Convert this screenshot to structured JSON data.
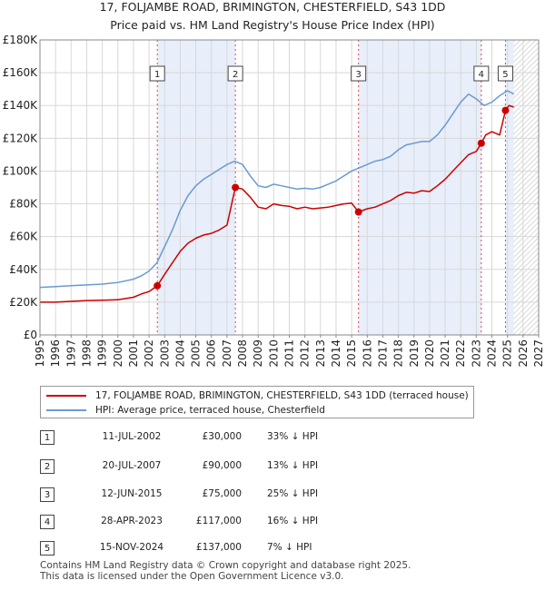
{
  "chart_data": {
    "type": "line",
    "title": "17, FOLJAMBE ROAD, BRIMINGTON, CHESTERFIELD, S43 1DD",
    "subtitle": "Price paid vs. HM Land Registry's House Price Index (HPI)",
    "x_ticks": [
      "1995",
      "1996",
      "1997",
      "1998",
      "1999",
      "2000",
      "2001",
      "2002",
      "2003",
      "2004",
      "2005",
      "2006",
      "2007",
      "2008",
      "2009",
      "2010",
      "2011",
      "2012",
      "2013",
      "2014",
      "2015",
      "2016",
      "2017",
      "2018",
      "2019",
      "2020",
      "2021",
      "2022",
      "2023",
      "2024",
      "2025",
      "2026",
      "2027"
    ],
    "y_ticks": [
      "£0",
      "£20K",
      "£40K",
      "£60K",
      "£80K",
      "£100K",
      "£120K",
      "£140K",
      "£160K",
      "£180K"
    ],
    "xlim": [
      1995,
      2027
    ],
    "ylim": [
      0,
      180000
    ],
    "forecast_from": 2025.4,
    "colors": {
      "property": "#cc0000",
      "hpi": "#6a9ad0",
      "shade": "#e8eefa",
      "grid": "#d8d8d8"
    },
    "series": [
      {
        "name": "17, FOLJAMBE ROAD, BRIMINGTON, CHESTERFIELD, S43 1DD (terraced house)",
        "color": "#cc0000",
        "x": [
          1995.0,
          1996.0,
          1997.0,
          1998.0,
          1999.0,
          2000.0,
          2001.0,
          2001.5,
          2002.0,
          2002.53,
          2003.0,
          2003.5,
          2004.0,
          2004.5,
          2005.0,
          2005.5,
          2006.0,
          2006.5,
          2007.0,
          2007.54,
          2008.0,
          2008.5,
          2009.0,
          2009.5,
          2010.0,
          2010.5,
          2011.0,
          2011.5,
          2012.0,
          2012.5,
          2013.0,
          2013.5,
          2014.0,
          2014.5,
          2015.0,
          2015.44,
          2016.0,
          2016.5,
          2017.0,
          2017.5,
          2018.0,
          2018.5,
          2019.0,
          2019.5,
          2020.0,
          2020.5,
          2021.0,
          2021.5,
          2022.0,
          2022.5,
          2023.0,
          2023.32,
          2023.6,
          2024.0,
          2024.5,
          2024.87,
          2025.1,
          2025.4
        ],
        "values": [
          20000,
          20000,
          20500,
          21000,
          21200,
          21500,
          23000,
          25000,
          26500,
          30000,
          37000,
          44000,
          51000,
          56000,
          59000,
          61000,
          62000,
          64000,
          67000,
          90000,
          89000,
          84000,
          78000,
          77000,
          80000,
          79000,
          78500,
          77000,
          78000,
          77000,
          77500,
          78000,
          79000,
          80000,
          80500,
          75000,
          77000,
          78000,
          80000,
          82000,
          85000,
          87000,
          86500,
          88000,
          87500,
          91000,
          95000,
          100000,
          105000,
          110000,
          112000,
          117000,
          122000,
          124000,
          122000,
          137000,
          140000,
          139000
        ]
      },
      {
        "name": "HPI: Average price, terraced house, Chesterfield",
        "color": "#6a9ad0",
        "x": [
          1995.0,
          1996.0,
          1997.0,
          1998.0,
          1999.0,
          2000.0,
          2001.0,
          2001.5,
          2002.0,
          2002.5,
          2003.0,
          2003.5,
          2004.0,
          2004.5,
          2005.0,
          2005.5,
          2006.0,
          2006.5,
          2007.0,
          2007.5,
          2008.0,
          2008.5,
          2009.0,
          2009.5,
          2010.0,
          2010.5,
          2011.0,
          2011.5,
          2012.0,
          2012.5,
          2013.0,
          2013.5,
          2014.0,
          2014.5,
          2015.0,
          2015.5,
          2016.0,
          2016.5,
          2017.0,
          2017.5,
          2018.0,
          2018.5,
          2019.0,
          2019.5,
          2020.0,
          2020.5,
          2021.0,
          2021.5,
          2022.0,
          2022.5,
          2023.0,
          2023.5,
          2024.0,
          2024.5,
          2025.0,
          2025.4
        ],
        "values": [
          29000,
          29500,
          30000,
          30500,
          31000,
          32000,
          34000,
          36000,
          39000,
          44000,
          54000,
          64000,
          76000,
          85000,
          91000,
          95000,
          98000,
          101000,
          104000,
          106000,
          104000,
          97000,
          91000,
          90000,
          92000,
          91000,
          90000,
          89000,
          89500,
          89000,
          90000,
          92000,
          94000,
          97000,
          100000,
          102000,
          104000,
          106000,
          107000,
          109000,
          113000,
          116000,
          117000,
          118000,
          118000,
          122000,
          128000,
          135000,
          142000,
          147000,
          144000,
          140000,
          142000,
          146000,
          149000,
          147000
        ]
      }
    ],
    "sales_markers": [
      {
        "label": "1",
        "x": 2002.53,
        "value": 30000
      },
      {
        "label": "2",
        "x": 2007.54,
        "value": 90000
      },
      {
        "label": "3",
        "x": 2015.44,
        "value": 75000
      },
      {
        "label": "4",
        "x": 2023.32,
        "value": 117000
      },
      {
        "label": "5",
        "x": 2024.87,
        "value": 137000
      }
    ],
    "shaded_periods": [
      [
        2002.53,
        2007.54
      ],
      [
        2015.44,
        2023.32
      ],
      [
        2024.87,
        2025.4
      ]
    ]
  },
  "sales": [
    {
      "num": "1",
      "date": "11-JUL-2002",
      "price": "£30,000",
      "hpi": "33% ↓ HPI"
    },
    {
      "num": "2",
      "date": "20-JUL-2007",
      "price": "£90,000",
      "hpi": "13% ↓ HPI"
    },
    {
      "num": "3",
      "date": "12-JUN-2015",
      "price": "£75,000",
      "hpi": "25% ↓ HPI"
    },
    {
      "num": "4",
      "date": "28-APR-2023",
      "price": "£117,000",
      "hpi": "16% ↓ HPI"
    },
    {
      "num": "5",
      "date": "15-NOV-2024",
      "price": "£137,000",
      "hpi": "7% ↓ HPI"
    }
  ],
  "footer": {
    "line1": "Contains HM Land Registry data © Crown copyright and database right 2025.",
    "line2": "This data is licensed under the Open Government Licence v3.0."
  }
}
